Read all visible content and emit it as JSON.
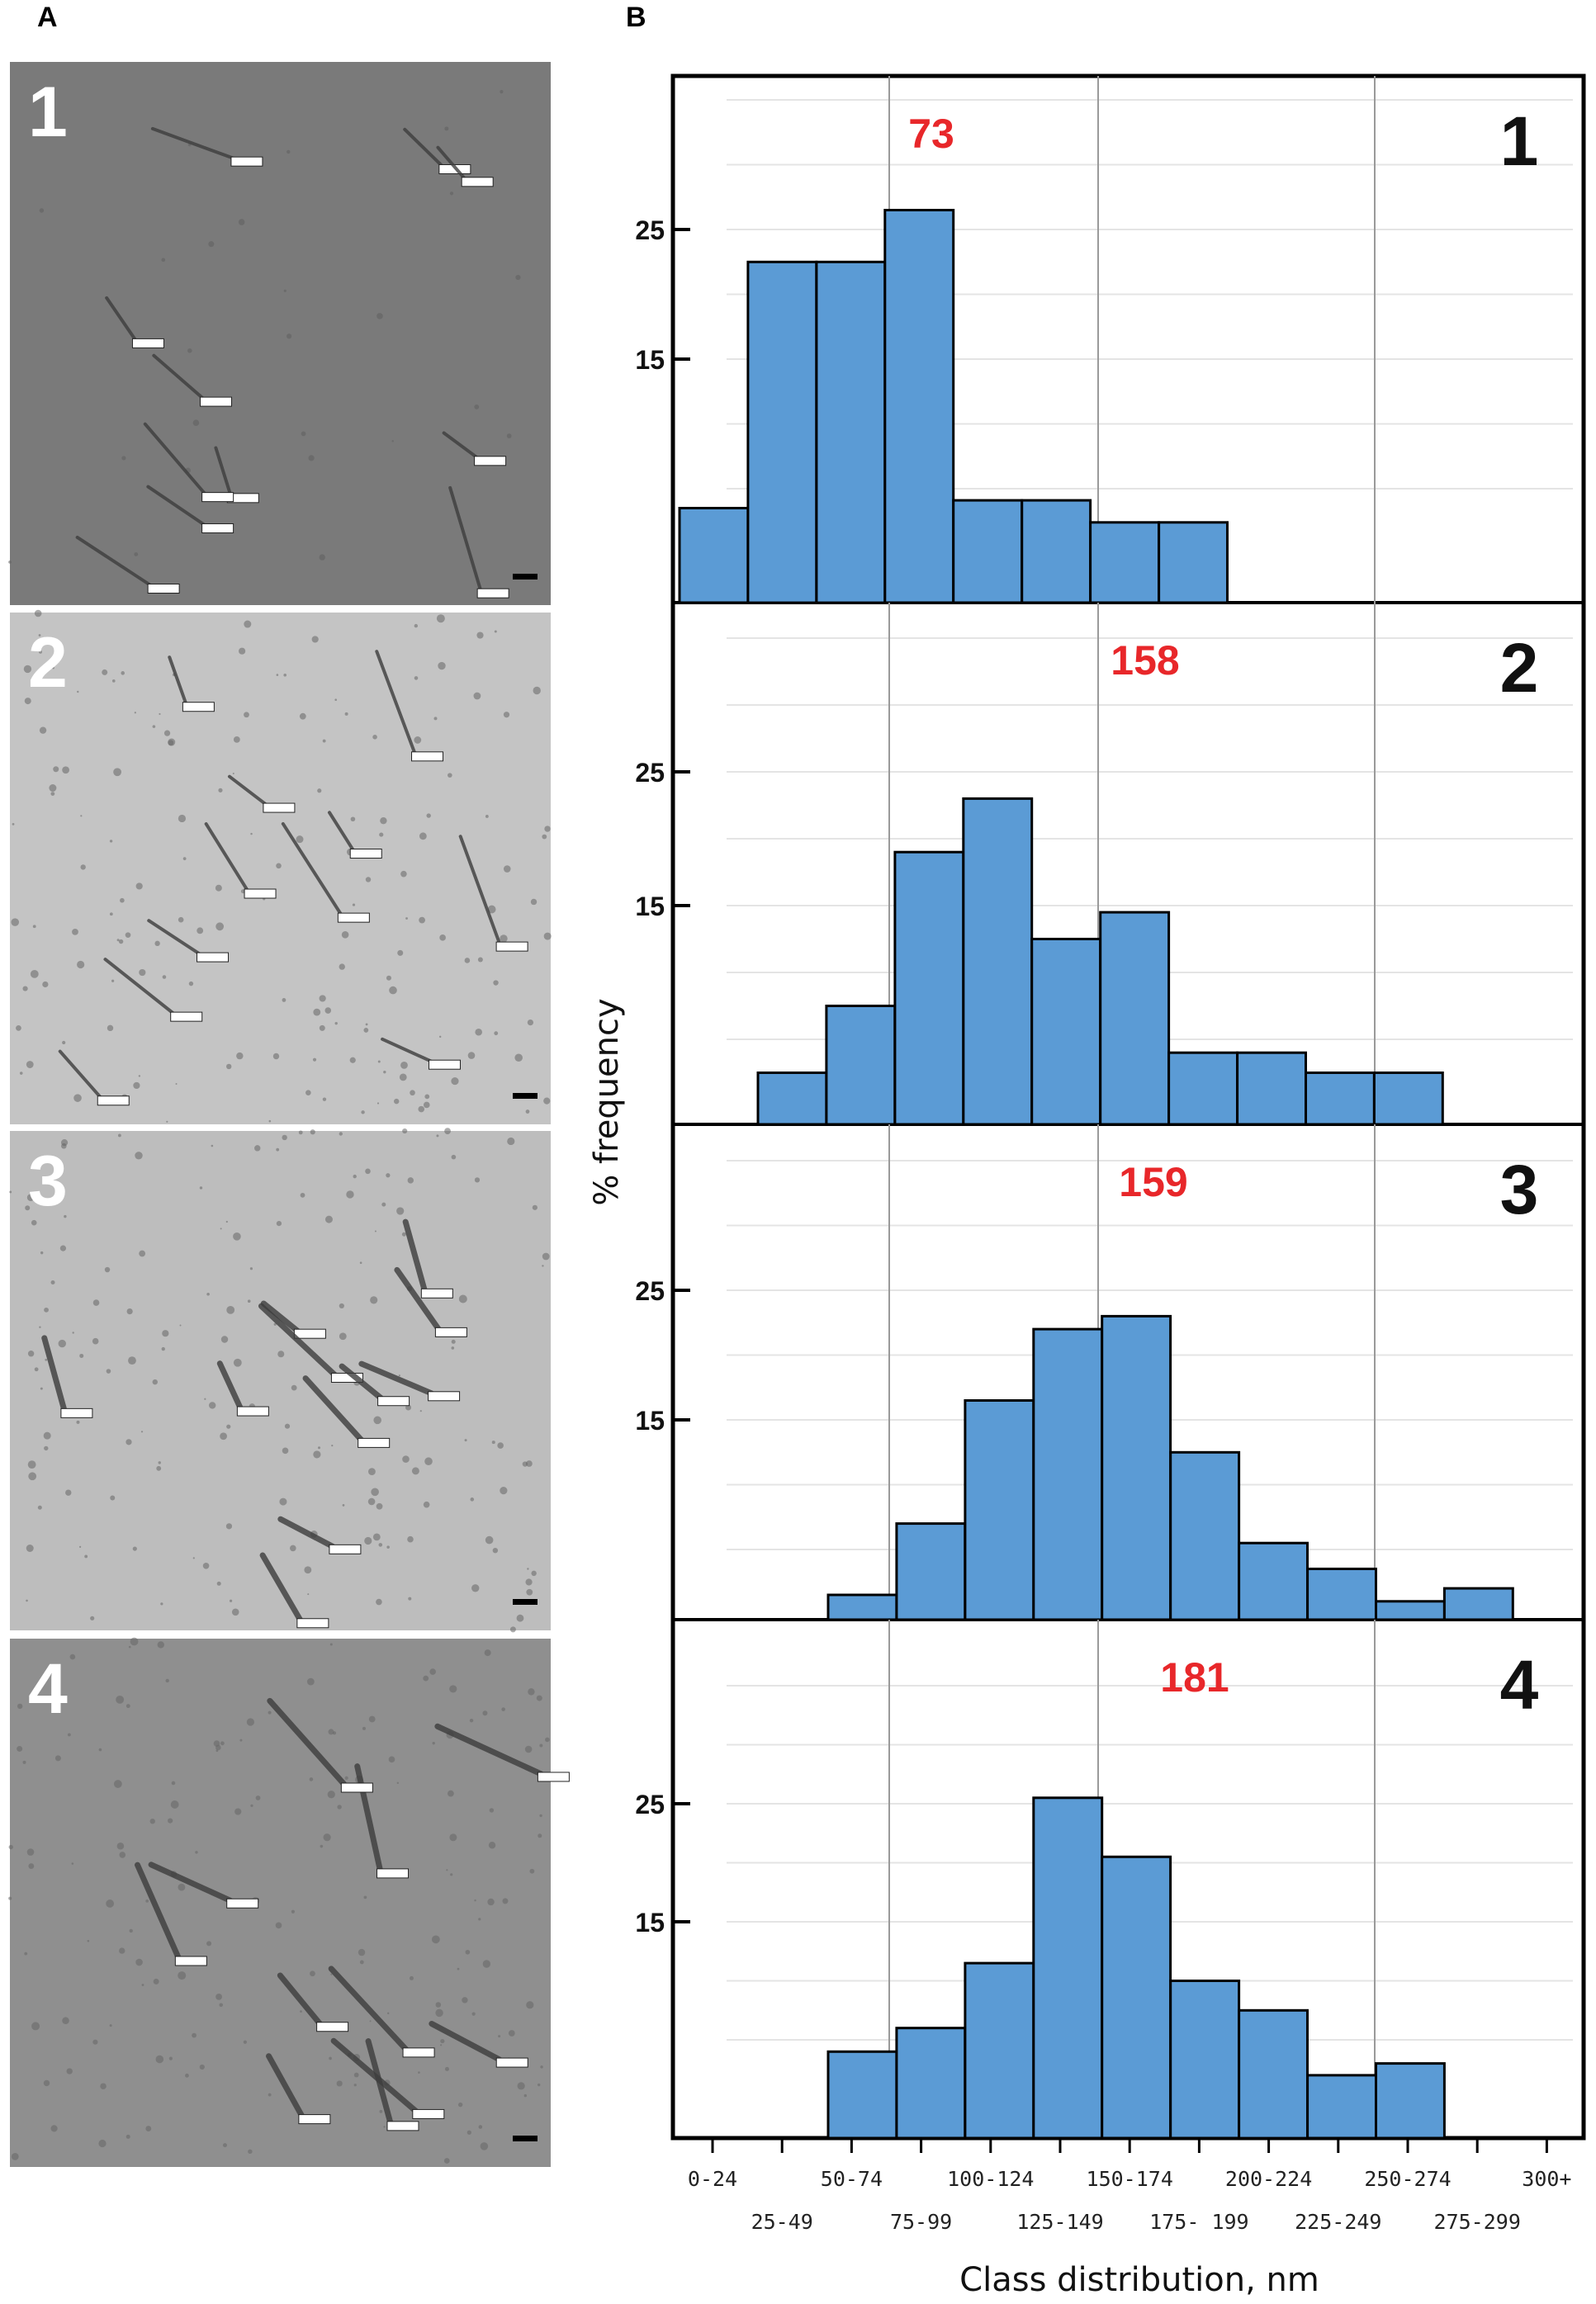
{
  "panel_labels": {
    "a": "A",
    "b": "B"
  },
  "micrographs": [
    {
      "number": "1",
      "tone": "#7a7a7a"
    },
    {
      "number": "2",
      "tone": "#c4c4c4"
    },
    {
      "number": "3",
      "tone": "#bdbdbd"
    },
    {
      "number": "4",
      "tone": "#8f8f8f"
    }
  ],
  "colors": {
    "bar": "#5b9bd5",
    "bar_edge": "#000000",
    "mean": "#e8272a"
  },
  "chart_data": {
    "type": "bar",
    "xlabel": "Class distribution, nm",
    "ylabel": "% frequency",
    "categories": [
      "0-24",
      "25-49",
      "50-74",
      "75-99",
      "100-124",
      "125-149",
      "150-174",
      "175- 199",
      "200-224",
      "225-249",
      "250-274",
      "275-299",
      "300+"
    ],
    "yticks": [
      15,
      25
    ],
    "series": [
      {
        "panel": "1",
        "mean_label": "73",
        "values": [
          3.5,
          22.5,
          22.5,
          26.5,
          4.1,
          4.1,
          2.4,
          2.4,
          0,
          0,
          0,
          0,
          0
        ]
      },
      {
        "panel": "2",
        "mean_label": "158",
        "values": [
          0,
          2.5,
          7.5,
          19,
          23,
          12.5,
          14.5,
          4,
          4,
          2.5,
          2.5,
          0,
          0
        ]
      },
      {
        "panel": "3",
        "mean_label": "159",
        "values": [
          0,
          0,
          1.5,
          7.0,
          16.5,
          22.0,
          23.0,
          12.5,
          5.5,
          3.5,
          1.0,
          2.0,
          0
        ]
      },
      {
        "panel": "4",
        "mean_label": "181",
        "values": [
          0,
          0,
          4,
          6,
          11.5,
          25.5,
          20.5,
          10,
          7.5,
          2,
          3,
          0,
          0
        ]
      }
    ]
  }
}
